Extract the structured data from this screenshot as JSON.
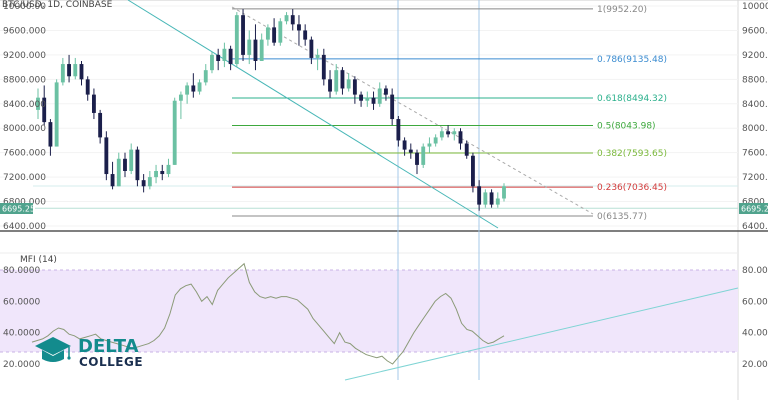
{
  "header": {
    "symbol": "BTC/USD, 1D, COINBASE",
    "indicator": "MFI (14)"
  },
  "price_tag": "6695.25",
  "logo": {
    "line1": "DELTA",
    "line2": "COLLEGE",
    "icon": "graduation-cap-icon",
    "color": "#138b8d"
  },
  "chart_data": [
    {
      "type": "candlestick",
      "title": "BTC/USD, 1D, COINBASE",
      "ylim": [
        6400,
        10000
      ],
      "y_ticks": [
        "10000.00",
        "9600.000",
        "9200.000",
        "8800.000",
        "8400.000",
        "8000.000",
        "7600.000",
        "7200.000",
        "6800.000",
        "6400.000"
      ],
      "up_color": "#6bc1a3",
      "down_color": "#1b1f4b",
      "candles": [
        [
          8300,
          8650,
          8150,
          8500
        ],
        [
          8500,
          8700,
          8050,
          8100
        ],
        [
          8100,
          8150,
          7550,
          7700
        ],
        [
          7700,
          8800,
          7700,
          8750
        ],
        [
          8750,
          9150,
          8700,
          9050
        ],
        [
          9050,
          9200,
          8750,
          8850
        ],
        [
          8850,
          9150,
          8800,
          9050
        ],
        [
          9050,
          9100,
          8700,
          8800
        ],
        [
          8800,
          8850,
          8450,
          8550
        ],
        [
          8550,
          8650,
          8150,
          8250
        ],
        [
          8250,
          8300,
          7750,
          7850
        ],
        [
          7850,
          7950,
          7150,
          7250
        ],
        [
          7250,
          7450,
          7000,
          7050
        ],
        [
          7050,
          7600,
          7050,
          7500
        ],
        [
          7500,
          7600,
          7200,
          7300
        ],
        [
          7300,
          7750,
          7250,
          7650
        ],
        [
          7650,
          7700,
          7050,
          7150
        ],
        [
          7150,
          7250,
          6950,
          7050
        ],
        [
          7050,
          7300,
          7000,
          7200
        ],
        [
          7200,
          7400,
          7100,
          7300
        ],
        [
          7300,
          7400,
          7150,
          7250
        ],
        [
          7250,
          7500,
          7200,
          7400
        ],
        [
          7400,
          8500,
          7400,
          8450
        ],
        [
          8450,
          8600,
          8150,
          8550
        ],
        [
          8550,
          8750,
          8400,
          8700
        ],
        [
          8700,
          8900,
          8500,
          8600
        ],
        [
          8600,
          8800,
          8550,
          8750
        ],
        [
          8750,
          9050,
          8700,
          8950
        ],
        [
          8950,
          9250,
          8900,
          9200
        ],
        [
          9200,
          9300,
          8950,
          9100
        ],
        [
          9100,
          9400,
          9000,
          9300
        ],
        [
          9300,
          9350,
          8950,
          9050
        ],
        [
          9050,
          9900,
          9000,
          9850
        ],
        [
          9850,
          9950,
          9100,
          9200
        ],
        [
          9200,
          9600,
          9050,
          9450
        ],
        [
          9450,
          9700,
          8950,
          9100
        ],
        [
          9100,
          9550,
          9100,
          9450
        ],
        [
          9450,
          9700,
          9350,
          9650
        ],
        [
          9650,
          9800,
          9350,
          9400
        ],
        [
          9400,
          9800,
          9350,
          9750
        ],
        [
          9750,
          9900,
          9700,
          9850
        ],
        [
          9850,
          9950,
          9600,
          9700
        ],
        [
          9700,
          9850,
          9350,
          9600
        ],
        [
          9600,
          9700,
          9350,
          9450
        ],
        [
          9450,
          9500,
          9050,
          9150
        ],
        [
          9150,
          9300,
          8950,
          9200
        ],
        [
          9200,
          9300,
          8700,
          8800
        ],
        [
          8800,
          8950,
          8500,
          8600
        ],
        [
          8600,
          9050,
          8550,
          8950
        ],
        [
          8950,
          9000,
          8550,
          8650
        ],
        [
          8650,
          8900,
          8600,
          8800
        ],
        [
          8800,
          8850,
          8400,
          8550
        ],
        [
          8550,
          8600,
          8350,
          8450
        ],
        [
          8450,
          8600,
          8350,
          8500
        ],
        [
          8500,
          8600,
          8300,
          8400
        ],
        [
          8400,
          8750,
          8350,
          8650
        ],
        [
          8650,
          8700,
          8450,
          8550
        ],
        [
          8550,
          8650,
          8050,
          8150
        ],
        [
          8150,
          8200,
          7700,
          7800
        ],
        [
          7800,
          7850,
          7550,
          7650
        ],
        [
          7650,
          7750,
          7500,
          7600
        ],
        [
          7600,
          7650,
          7250,
          7400
        ],
        [
          7400,
          7750,
          7350,
          7700
        ],
        [
          7700,
          7850,
          7600,
          7750
        ],
        [
          7750,
          7900,
          7700,
          7850
        ],
        [
          7850,
          8000,
          7800,
          7950
        ],
        [
          7950,
          8050,
          7850,
          7900
        ],
        [
          7900,
          8000,
          7800,
          7950
        ],
        [
          7950,
          8000,
          7650,
          7750
        ],
        [
          7750,
          7800,
          7500,
          7550
        ],
        [
          7550,
          7600,
          6950,
          7050
        ],
        [
          7050,
          7150,
          6650,
          6750
        ],
        [
          6750,
          7000,
          6700,
          6950
        ],
        [
          6950,
          7000,
          6700,
          6750
        ],
        [
          6750,
          6950,
          6700,
          6850
        ],
        [
          6850,
          7100,
          6800,
          7050
        ]
      ]
    },
    {
      "type": "line",
      "title": "MFI (14)",
      "ylim": [
        20,
        80
      ],
      "y_ticks": [
        "80.0000",
        "60.0000",
        "40.0000",
        "20.0000"
      ],
      "series": [
        {
          "color": "#8b9a78",
          "values": [
            34,
            35,
            36,
            38,
            41,
            43,
            42,
            39,
            38,
            36,
            37,
            38,
            39,
            36,
            35,
            34,
            33,
            32,
            31,
            30,
            31,
            32,
            33,
            35,
            38,
            43,
            52,
            64,
            68,
            70,
            71,
            66,
            60,
            63,
            58,
            67,
            71,
            75,
            78,
            81,
            84,
            72,
            66,
            63,
            62,
            63,
            62,
            63,
            63,
            62,
            61,
            58,
            55,
            49,
            45,
            41,
            37,
            33,
            40,
            34,
            33,
            30,
            28,
            26,
            25,
            24,
            25,
            22,
            20,
            24,
            28,
            34,
            40,
            45,
            50,
            55,
            60,
            63,
            65,
            62,
            55,
            46,
            42,
            41,
            38,
            35,
            33,
            34,
            36,
            38
          ]
        }
      ]
    }
  ],
  "fib_levels": [
    {
      "label": "1(9952.20)",
      "value": 9952.2,
      "color": "#888888"
    },
    {
      "label": "0.786(9135.48)",
      "value": 9135.48,
      "color": "#3a8bd0"
    },
    {
      "label": "0.618(8494.32)",
      "value": 8494.32,
      "color": "#2bb08c"
    },
    {
      "label": "0.5(8043.98)",
      "value": 8043.98,
      "color": "#3da83d"
    },
    {
      "label": "0.382(7593.65)",
      "value": 7593.65,
      "color": "#7ab83a"
    },
    {
      "label": "0.236(7036.45)",
      "value": 7036.45,
      "color": "#d23c3c"
    },
    {
      "label": "0(6135.77)",
      "value": 6135.77,
      "color": "#888888"
    }
  ],
  "colors": {
    "trend_line": "#48b7b7",
    "dashed_trend": "#aaaaaa",
    "mfi_band": "#f0e6fb",
    "mfi_line": "#8b9a78",
    "mfi_trend": "#7fd4d4",
    "price_tag_bg": "#50a38d",
    "cursor_line": "#a6c9e8"
  }
}
